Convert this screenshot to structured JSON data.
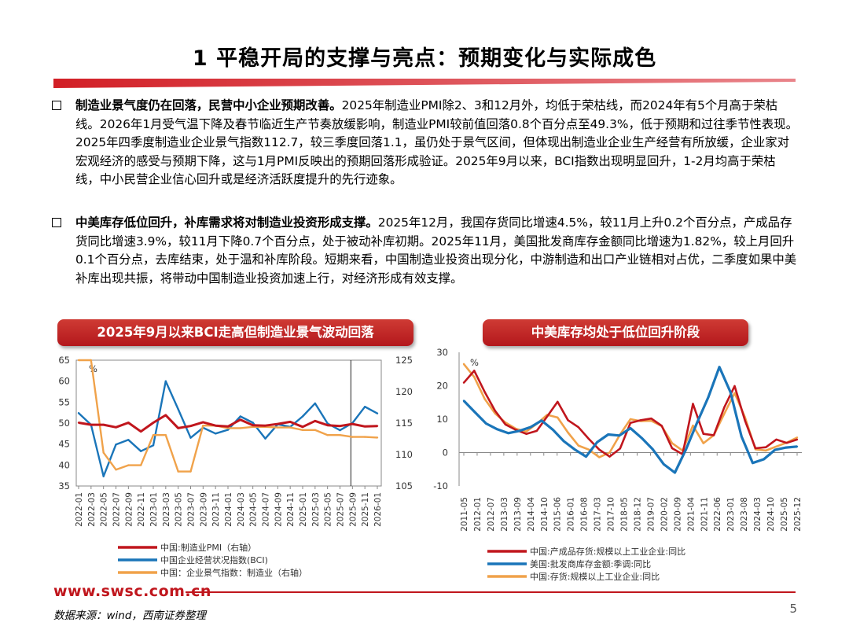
{
  "slide": {
    "title": "1 平稳开局的支撑与亮点：预期变化与实际成色",
    "page_number": "5",
    "accent_color": "#c0161d"
  },
  "bullets": [
    {
      "bold": "制造业景气度仍在回落，民营中小企业预期改善。",
      "text": "2025年制造业PMI除2、3和12月外，均低于荣枯线，而2024年有5个月高于荣枯线。2026年1月受气温下降及春节临近生产节奏放缓影响，制造业PMI较前值回落0.8个百分点至49.3%，低于预期和过往季节性表现。2025年四季度制造业企业景气指数112.7，较三季度回落1.1，虽仍处于景气区间，但体现出制造业企业生产经营有所放缓，企业家对宏观经济的感受与预期下降，这与1月PMI反映出的预期回落形成验证。2025年9月以来，BCI指数出现明显回升，1-2月均高于荣枯线，中小民营企业信心回升或是经济活跃度提升的先行迹象。"
    },
    {
      "bold": "中美库存低位回升，补库需求将对制造业投资形成支撑。",
      "text": "2025年12月，我国存货同比增速4.5%，较11月上升0.2个百分点，产成品存货同比增速3.9%，较11月下降0.7个百分点，处于被动补库初期。2025年11月，美国批发商库存金额同比增速为1.82%，较上月回升0.1个百分点，去库结束，处于温和补库阶段。短期来看，中国制造业投资出现分化，中游制造和出口产业链相对占优，二季度如果中美补库出现共振，将带动中国制造业投资加速上行，对经济形成有效支撑。"
    }
  ],
  "footer": {
    "url": "www.swsc.com.cn",
    "source": "数据来源：wind，西南证券整理"
  },
  "chart_data": [
    {
      "type": "line",
      "title": "2025年9月以来BCI走高但制造业景气波动回落",
      "unit_label": "%",
      "x": [
        "2022-01",
        "2022-03",
        "2022-05",
        "2022-07",
        "2022-09",
        "2022-11",
        "2023-01",
        "2023-03",
        "2023-05",
        "2023-07",
        "2023-09",
        "2023-11",
        "2024-01",
        "2024-03",
        "2024-05",
        "2024-07",
        "2024-09",
        "2024-11",
        "2025-01",
        "2025-03",
        "2025-05",
        "2025-07",
        "2025-09",
        "2025-11",
        "2026-01"
      ],
      "x_ticks": [
        "2022-01",
        "2022-03",
        "2022-05",
        "2022-07",
        "2022-09",
        "2022-11",
        "2023-01",
        "2023-03",
        "2023-05",
        "2023-07",
        "2023-09",
        "2023-11",
        "2024-01",
        "2024-03",
        "2024-05",
        "2024-07",
        "2024-09",
        "2024-11",
        "2025-01",
        "2025-03",
        "2025-05",
        "2025-07",
        "2025-09",
        "2025-11",
        "2026-01"
      ],
      "left_axis": {
        "min": 35,
        "max": 65,
        "ticks": [
          35,
          40,
          45,
          50,
          55,
          60,
          65
        ]
      },
      "right_axis": {
        "min": 105,
        "max": 125,
        "ticks": [
          105,
          110,
          115,
          120,
          125
        ]
      },
      "series": [
        {
          "name": "中国:制造业PMI（右轴）",
          "axis": "left",
          "color": "#c0161d",
          "values": [
            50.1,
            49.6,
            49.6,
            49.0,
            50.1,
            48.0,
            50.1,
            51.9,
            48.8,
            49.3,
            50.2,
            49.4,
            49.2,
            50.8,
            49.5,
            49.4,
            49.8,
            50.3,
            49.1,
            50.5,
            49.5,
            49.3,
            49.8,
            49.2,
            49.3
          ]
        },
        {
          "name": "中国企业经营状况指数(BCI)",
          "axis": "left",
          "color": "#1a75b9",
          "values": [
            52.4,
            49.6,
            37.3,
            44.9,
            46.0,
            43.3,
            44.7,
            60.0,
            53.3,
            46.5,
            48.9,
            47.5,
            48.4,
            51.6,
            50.1,
            46.3,
            49.7,
            49.1,
            51.6,
            54.7,
            49.9,
            48.3,
            50.0,
            53.9,
            52.3
          ]
        },
        {
          "name": "中国：企业景气指数：制造业（右轴）",
          "axis": "right",
          "color": "#f0a24a",
          "values": [
            125.0,
            125.0,
            110.3,
            107.6,
            108.3,
            108.3,
            113.1,
            113.1,
            107.3,
            107.3,
            114.6,
            114.6,
            114.2,
            114.2,
            114.4,
            114.4,
            114.3,
            114.3,
            113.9,
            113.9,
            113.1,
            113.1,
            112.8,
            112.8,
            112.7
          ]
        }
      ]
    },
    {
      "type": "line",
      "title": "中美库存均处于低位回升阶段",
      "unit_label": "%",
      "x_ticks": [
        "2011-05",
        "2012-01",
        "2012-07",
        "2013-03",
        "2013-09",
        "2014-04",
        "2014-10",
        "2015-06",
        "2016-01",
        "2016-08",
        "2017-03",
        "2017-10",
        "2018-05",
        "2018-12",
        "2019-07",
        "2020-02",
        "2020-09",
        "2021-04",
        "2021-11",
        "2022-06",
        "2023-01",
        "2023-08",
        "2024-03",
        "2024-10",
        "2025-05",
        "2025-12"
      ],
      "y_axis": {
        "min": -10,
        "max": 30,
        "ticks": [
          -10,
          0,
          10,
          20,
          30
        ]
      },
      "series": [
        {
          "name": "中国:产成品存货:规模以上工业企业:同比",
          "color": "#c0161d",
          "values": [
            20.9,
            24.5,
            18.2,
            12.5,
            8.4,
            6.8,
            5.6,
            6.5,
            10.8,
            15.2,
            9.7,
            7.6,
            4.1,
            0.9,
            -1.2,
            1.2,
            8.9,
            9.7,
            10.2,
            8.0,
            1.3,
            -0.5,
            14.6,
            5.6,
            5.2,
            13.5,
            19.9,
            9.5,
            1.3,
            1.6,
            3.9,
            2.9,
            3.9
          ]
        },
        {
          "name": "美国:批发商库存金额:季调:同比",
          "color": "#1a75b9",
          "values": [
            15.5,
            12.1,
            8.7,
            7.0,
            5.8,
            6.5,
            7.6,
            9.6,
            6.9,
            3.4,
            0.9,
            -1.2,
            3.1,
            5.4,
            5.1,
            7.3,
            4.4,
            1.0,
            -3.5,
            -6.0,
            1.0,
            9.0,
            16.5,
            25.6,
            18.1,
            4.8,
            -3.1,
            -2.0,
            0.8,
            1.5,
            1.82
          ]
        },
        {
          "name": "中国:存货:规模以上工业企业:同比",
          "color": "#f0a24a",
          "values": [
            26.5,
            22.6,
            16.1,
            11.7,
            9.0,
            7.1,
            6.3,
            8.6,
            11.3,
            10.5,
            6.0,
            2.1,
            0.9,
            -1.4,
            0.0,
            5.4,
            10.0,
            9.4,
            9.5,
            7.9,
            2.8,
            0.6,
            8.1,
            2.8,
            5.2,
            11.6,
            17.8,
            10.5,
            1.0,
            0.6,
            1.8,
            3.0,
            4.5
          ]
        }
      ]
    }
  ]
}
